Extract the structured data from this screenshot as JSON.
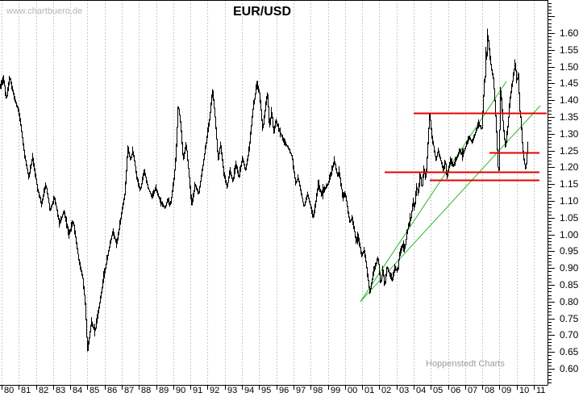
{
  "header": {
    "title": "EUR/USD",
    "watermark": "www.chartbuero.de",
    "credit": "Hoppenstedt Charts"
  },
  "colors": {
    "background": "#ffffff",
    "series": "#000000",
    "grid": "#c9c9c9",
    "axis": "#000000",
    "trendline": "#2eb82e",
    "resistance": "#e60000",
    "watermark": "#b5b5b5",
    "credit": "#9c9c9c"
  },
  "chart_data": {
    "type": "line",
    "title": "EUR/USD",
    "grid": "vertical-dashed-yearly",
    "legend": "none",
    "xlim": [
      1979.906,
      2011.797
    ],
    "ylim": [
      0.552,
      1.6986
    ],
    "x_axis": {
      "labels": [
        "80",
        "81",
        "82",
        "83",
        "84",
        "85",
        "86",
        "87",
        "88",
        "89",
        "90",
        "91",
        "92",
        "93",
        "94",
        "95",
        "96",
        "97",
        "98",
        "99",
        "00",
        "01",
        "02",
        "03",
        "04",
        "05",
        "06",
        "07",
        "08",
        "09",
        "10",
        "11"
      ],
      "start_year": 1980
    },
    "y_axis": {
      "labels": [
        "1.60",
        "1.55",
        "1.50",
        "1.45",
        "1.40",
        "1.35",
        "1.30",
        "1.25",
        "1.20",
        "1.15",
        "1.10",
        "1.05",
        "1.00",
        "0.95",
        "0.90",
        "0.85",
        "0.80",
        "0.75",
        "0.70",
        "0.65",
        "0.60"
      ],
      "major_step": 0.05,
      "minor_step": 0.01,
      "side": "right"
    },
    "series": {
      "name": "EUR/USD",
      "points": [
        [
          1979.92,
          1.44
        ],
        [
          1980.1,
          1.46
        ],
        [
          1980.25,
          1.4
        ],
        [
          1980.45,
          1.47
        ],
        [
          1980.7,
          1.41
        ],
        [
          1981.0,
          1.36
        ],
        [
          1981.3,
          1.24
        ],
        [
          1981.55,
          1.17
        ],
        [
          1981.78,
          1.23
        ],
        [
          1982.05,
          1.14
        ],
        [
          1982.3,
          1.09
        ],
        [
          1982.55,
          1.15
        ],
        [
          1982.8,
          1.07
        ],
        [
          1983.05,
          1.11
        ],
        [
          1983.35,
          1.03
        ],
        [
          1983.6,
          1.07
        ],
        [
          1983.9,
          1.0
        ],
        [
          1984.15,
          1.04
        ],
        [
          1984.45,
          0.93
        ],
        [
          1984.7,
          0.87
        ],
        [
          1984.85,
          0.79
        ],
        [
          1984.97,
          0.65
        ],
        [
          1985.2,
          0.74
        ],
        [
          1985.42,
          0.71
        ],
        [
          1985.7,
          0.8
        ],
        [
          1985.95,
          0.88
        ],
        [
          1986.2,
          0.95
        ],
        [
          1986.45,
          1.01
        ],
        [
          1986.68,
          0.97
        ],
        [
          1986.95,
          1.06
        ],
        [
          1987.15,
          1.12
        ],
        [
          1987.32,
          1.26
        ],
        [
          1987.48,
          1.22
        ],
        [
          1987.62,
          1.25
        ],
        [
          1987.85,
          1.17
        ],
        [
          1988.05,
          1.13
        ],
        [
          1988.28,
          1.19
        ],
        [
          1988.5,
          1.14
        ],
        [
          1988.75,
          1.11
        ],
        [
          1988.95,
          1.14
        ],
        [
          1989.2,
          1.1
        ],
        [
          1989.5,
          1.078
        ],
        [
          1989.65,
          1.105
        ],
        [
          1989.8,
          1.085
        ],
        [
          1990.0,
          1.16
        ],
        [
          1990.12,
          1.23
        ],
        [
          1990.25,
          1.39
        ],
        [
          1990.4,
          1.33
        ],
        [
          1990.55,
          1.22
        ],
        [
          1990.72,
          1.27
        ],
        [
          1990.9,
          1.17
        ],
        [
          1991.05,
          1.085
        ],
        [
          1991.25,
          1.15
        ],
        [
          1991.45,
          1.12
        ],
        [
          1991.68,
          1.2
        ],
        [
          1991.88,
          1.27
        ],
        [
          1992.05,
          1.33
        ],
        [
          1992.26,
          1.43
        ],
        [
          1992.42,
          1.34
        ],
        [
          1992.58,
          1.22
        ],
        [
          1992.72,
          1.27
        ],
        [
          1992.9,
          1.19
        ],
        [
          1993.1,
          1.14
        ],
        [
          1993.28,
          1.19
        ],
        [
          1993.45,
          1.155
        ],
        [
          1993.62,
          1.21
        ],
        [
          1993.8,
          1.17
        ],
        [
          1994.0,
          1.23
        ],
        [
          1994.18,
          1.19
        ],
        [
          1994.38,
          1.25
        ],
        [
          1994.6,
          1.37
        ],
        [
          1994.85,
          1.45
        ],
        [
          1995.0,
          1.42
        ],
        [
          1995.18,
          1.31
        ],
        [
          1995.32,
          1.37
        ],
        [
          1995.45,
          1.42
        ],
        [
          1995.58,
          1.32
        ],
        [
          1995.7,
          1.37
        ],
        [
          1995.82,
          1.3
        ],
        [
          1995.95,
          1.34
        ],
        [
          1996.15,
          1.31
        ],
        [
          1996.4,
          1.28
        ],
        [
          1996.65,
          1.26
        ],
        [
          1996.88,
          1.235
        ],
        [
          1997.1,
          1.15
        ],
        [
          1997.25,
          1.17
        ],
        [
          1997.58,
          1.08
        ],
        [
          1997.8,
          1.12
        ],
        [
          1998.14,
          1.05
        ],
        [
          1998.42,
          1.15
        ],
        [
          1998.6,
          1.12
        ],
        [
          1998.75,
          1.13
        ],
        [
          1999.0,
          1.15
        ],
        [
          1999.36,
          1.22
        ],
        [
          1999.55,
          1.17
        ],
        [
          1999.62,
          1.19
        ],
        [
          1999.85,
          1.11
        ],
        [
          2000.0,
          1.12
        ],
        [
          2000.25,
          1.035
        ],
        [
          2000.4,
          1.05
        ],
        [
          2000.62,
          0.98
        ],
        [
          2000.76,
          0.99
        ],
        [
          2000.95,
          0.935
        ],
        [
          2001.1,
          0.955
        ],
        [
          2001.42,
          0.825
        ],
        [
          2001.65,
          0.89
        ],
        [
          2001.9,
          0.93
        ],
        [
          2002.05,
          0.85
        ],
        [
          2002.18,
          0.9
        ],
        [
          2002.28,
          0.84
        ],
        [
          2002.42,
          0.905
        ],
        [
          2002.6,
          0.88
        ],
        [
          2002.74,
          0.865
        ],
        [
          2002.88,
          0.9
        ],
        [
          2003.05,
          0.89
        ],
        [
          2003.12,
          0.93
        ],
        [
          2003.35,
          0.97
        ],
        [
          2003.45,
          0.955
        ],
        [
          2003.6,
          1.01
        ],
        [
          2003.82,
          1.05
        ],
        [
          2003.93,
          1.1
        ],
        [
          2004.02,
          1.075
        ],
        [
          2004.15,
          1.145
        ],
        [
          2004.25,
          1.12
        ],
        [
          2004.35,
          1.185
        ],
        [
          2004.45,
          1.135
        ],
        [
          2004.58,
          1.2
        ],
        [
          2004.68,
          1.16
        ],
        [
          2004.8,
          1.27
        ],
        [
          2004.9,
          1.3666
        ],
        [
          2005.0,
          1.305
        ],
        [
          2005.27,
          1.22
        ],
        [
          2005.4,
          1.25
        ],
        [
          2005.72,
          1.19
        ],
        [
          2005.82,
          1.22
        ],
        [
          2005.9,
          1.165
        ],
        [
          2006.1,
          1.22
        ],
        [
          2006.3,
          1.205
        ],
        [
          2006.68,
          1.25
        ],
        [
          2006.82,
          1.235
        ],
        [
          2007.22,
          1.29
        ],
        [
          2007.38,
          1.273
        ],
        [
          2007.75,
          1.33
        ],
        [
          2007.95,
          1.315
        ],
        [
          2008.0,
          1.37
        ],
        [
          2008.08,
          1.45
        ],
        [
          2008.14,
          1.47
        ],
        [
          2008.18,
          1.545
        ],
        [
          2008.22,
          1.52
        ],
        [
          2008.28,
          1.601
        ],
        [
          2008.38,
          1.55
        ],
        [
          2008.48,
          1.5
        ],
        [
          2008.6,
          1.47
        ],
        [
          2008.7,
          1.4
        ],
        [
          2008.8,
          1.3
        ],
        [
          2008.92,
          1.16
        ],
        [
          2009.03,
          1.44
        ],
        [
          2009.18,
          1.33
        ],
        [
          2009.32,
          1.255
        ],
        [
          2009.45,
          1.32
        ],
        [
          2009.58,
          1.4
        ],
        [
          2009.7,
          1.445
        ],
        [
          2009.8,
          1.48
        ],
        [
          2009.88,
          1.515
        ],
        [
          2009.98,
          1.45
        ],
        [
          2010.06,
          1.48
        ],
        [
          2010.15,
          1.37
        ],
        [
          2010.22,
          1.345
        ],
        [
          2010.3,
          1.27
        ],
        [
          2010.4,
          1.22
        ],
        [
          2010.5,
          1.19
        ],
        [
          2010.56,
          1.23
        ],
        [
          2010.62,
          1.265
        ]
      ]
    },
    "trendlines": [
      {
        "name": "support-trendline-steep",
        "from": [
          2000.9,
          0.8
        ],
        "to": [
          2009.4,
          1.456
        ]
      },
      {
        "name": "support-trendline-shallow",
        "from": [
          2000.9,
          0.8
        ],
        "to": [
          2011.38,
          1.384
        ]
      }
    ],
    "hlines": [
      {
        "name": "resistance-1.36",
        "price": 1.363,
        "from_year": 2004.0,
        "to_year": 2011.75
      },
      {
        "name": "support-1.24",
        "price": 1.244,
        "from_year": 2008.42,
        "to_year": 2011.33
      },
      {
        "name": "support-1.19",
        "price": 1.187,
        "from_year": 2002.31,
        "to_year": 2011.33
      },
      {
        "name": "support-1.16",
        "price": 1.163,
        "from_year": 2004.94,
        "to_year": 2011.33
      }
    ],
    "bar_noise": 0.013,
    "noise_seed": 7
  }
}
